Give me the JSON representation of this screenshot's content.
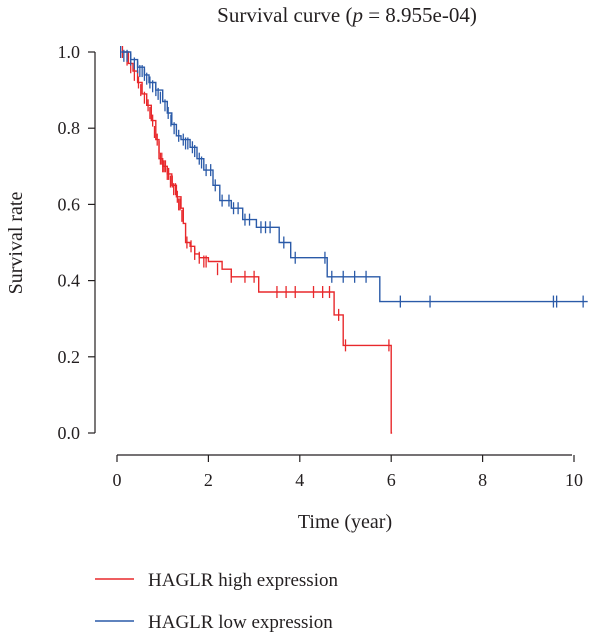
{
  "chart_data": {
    "type": "line",
    "title_prefix": "Survival curve (",
    "title_p": "p",
    "title_suffix": " = 8.955e-04)",
    "xlabel": "Time (year)",
    "ylabel": "Survival rate",
    "xlim": [
      0,
      10.3
    ],
    "ylim": [
      0,
      1.0
    ],
    "xticks": [
      0,
      2,
      4,
      6,
      8,
      10
    ],
    "xtick_labels": [
      "0",
      "2",
      "4",
      "6",
      "8",
      "10"
    ],
    "yticks": [
      0.0,
      0.2,
      0.4,
      0.6,
      0.8,
      1.0
    ],
    "ytick_labels": [
      "0.0",
      "0.2",
      "0.4",
      "0.6",
      "0.8",
      "1.0"
    ],
    "legend_position": "bottom-left",
    "series": [
      {
        "name": "HAGLR high expression",
        "color": "#e8282b",
        "steps": [
          [
            0.1,
            1.0
          ],
          [
            0.25,
            0.97
          ],
          [
            0.35,
            0.95
          ],
          [
            0.45,
            0.92
          ],
          [
            0.55,
            0.89
          ],
          [
            0.65,
            0.86
          ],
          [
            0.75,
            0.82
          ],
          [
            0.85,
            0.77
          ],
          [
            0.92,
            0.72
          ],
          [
            1.0,
            0.7
          ],
          [
            1.1,
            0.68
          ],
          [
            1.2,
            0.65
          ],
          [
            1.3,
            0.62
          ],
          [
            1.4,
            0.59
          ],
          [
            1.45,
            0.55
          ],
          [
            1.5,
            0.5
          ],
          [
            1.6,
            0.49
          ],
          [
            1.7,
            0.47
          ],
          [
            1.8,
            0.46
          ],
          [
            2.0,
            0.45
          ],
          [
            2.3,
            0.43
          ],
          [
            2.5,
            0.41
          ],
          [
            3.1,
            0.37
          ],
          [
            4.75,
            0.31
          ],
          [
            4.95,
            0.23
          ],
          [
            6.0,
            0.0
          ]
        ],
        "end_x": 6.02,
        "censored": [
          [
            0.12,
            1.0
          ],
          [
            0.22,
            0.98
          ],
          [
            0.3,
            0.96
          ],
          [
            0.38,
            0.94
          ],
          [
            0.47,
            0.92
          ],
          [
            0.52,
            0.9
          ],
          [
            0.6,
            0.88
          ],
          [
            0.68,
            0.86
          ],
          [
            0.72,
            0.84
          ],
          [
            0.78,
            0.82
          ],
          [
            0.82,
            0.79
          ],
          [
            0.88,
            0.77
          ],
          [
            0.92,
            0.75
          ],
          [
            0.95,
            0.72
          ],
          [
            0.98,
            0.72
          ],
          [
            1.0,
            0.7
          ],
          [
            1.03,
            0.7
          ],
          [
            1.06,
            0.7
          ],
          [
            1.1,
            0.68
          ],
          [
            1.13,
            0.68
          ],
          [
            1.17,
            0.66
          ],
          [
            1.21,
            0.66
          ],
          [
            1.24,
            0.64
          ],
          [
            1.28,
            0.64
          ],
          [
            1.32,
            0.62
          ],
          [
            1.35,
            0.6
          ],
          [
            1.38,
            0.6
          ],
          [
            1.42,
            0.57
          ],
          [
            1.53,
            0.5
          ],
          [
            1.62,
            0.49
          ],
          [
            1.7,
            0.47
          ],
          [
            1.8,
            0.46
          ],
          [
            1.9,
            0.45
          ],
          [
            1.95,
            0.45
          ],
          [
            2.2,
            0.43
          ],
          [
            2.5,
            0.41
          ],
          [
            2.8,
            0.41
          ],
          [
            3.0,
            0.41
          ],
          [
            3.5,
            0.37
          ],
          [
            3.7,
            0.37
          ],
          [
            3.9,
            0.37
          ],
          [
            4.3,
            0.37
          ],
          [
            4.5,
            0.37
          ],
          [
            4.65,
            0.37
          ],
          [
            4.85,
            0.31
          ],
          [
            5.0,
            0.23
          ],
          [
            5.95,
            0.23
          ]
        ]
      },
      {
        "name": "HAGLR low expression",
        "color": "#2a5aa8",
        "steps": [
          [
            0.1,
            1.0
          ],
          [
            0.3,
            0.98
          ],
          [
            0.45,
            0.96
          ],
          [
            0.6,
            0.94
          ],
          [
            0.7,
            0.92
          ],
          [
            0.85,
            0.9
          ],
          [
            1.0,
            0.87
          ],
          [
            1.1,
            0.84
          ],
          [
            1.2,
            0.81
          ],
          [
            1.3,
            0.78
          ],
          [
            1.4,
            0.77
          ],
          [
            1.6,
            0.75
          ],
          [
            1.75,
            0.72
          ],
          [
            1.9,
            0.69
          ],
          [
            2.1,
            0.65
          ],
          [
            2.25,
            0.61
          ],
          [
            2.5,
            0.59
          ],
          [
            2.75,
            0.56
          ],
          [
            3.05,
            0.54
          ],
          [
            3.55,
            0.5
          ],
          [
            3.8,
            0.46
          ],
          [
            4.6,
            0.41
          ],
          [
            5.75,
            0.345
          ]
        ],
        "end_x": 10.3,
        "censored": [
          [
            0.08,
            1.0
          ],
          [
            0.15,
            0.99
          ],
          [
            0.22,
            0.99
          ],
          [
            0.3,
            0.98
          ],
          [
            0.38,
            0.97
          ],
          [
            0.45,
            0.96
          ],
          [
            0.5,
            0.95
          ],
          [
            0.55,
            0.95
          ],
          [
            0.6,
            0.94
          ],
          [
            0.65,
            0.93
          ],
          [
            0.72,
            0.92
          ],
          [
            0.78,
            0.91
          ],
          [
            0.85,
            0.9
          ],
          [
            0.9,
            0.89
          ],
          [
            0.95,
            0.88
          ],
          [
            1.05,
            0.86
          ],
          [
            1.12,
            0.84
          ],
          [
            1.18,
            0.82
          ],
          [
            1.25,
            0.8
          ],
          [
            1.35,
            0.78
          ],
          [
            1.45,
            0.77
          ],
          [
            1.5,
            0.76
          ],
          [
            1.55,
            0.76
          ],
          [
            1.65,
            0.75
          ],
          [
            1.7,
            0.74
          ],
          [
            1.8,
            0.72
          ],
          [
            1.85,
            0.71
          ],
          [
            1.95,
            0.69
          ],
          [
            2.05,
            0.69
          ],
          [
            2.15,
            0.65
          ],
          [
            2.3,
            0.61
          ],
          [
            2.45,
            0.61
          ],
          [
            2.55,
            0.59
          ],
          [
            2.65,
            0.59
          ],
          [
            2.8,
            0.56
          ],
          [
            2.9,
            0.56
          ],
          [
            3.15,
            0.54
          ],
          [
            3.25,
            0.54
          ],
          [
            3.35,
            0.54
          ],
          [
            3.65,
            0.5
          ],
          [
            3.9,
            0.46
          ],
          [
            4.55,
            0.46
          ],
          [
            4.7,
            0.41
          ],
          [
            4.95,
            0.41
          ],
          [
            5.2,
            0.41
          ],
          [
            5.45,
            0.41
          ],
          [
            6.2,
            0.345
          ],
          [
            6.85,
            0.345
          ],
          [
            9.55,
            0.345
          ],
          [
            9.62,
            0.345
          ],
          [
            10.2,
            0.345
          ]
        ]
      }
    ]
  }
}
